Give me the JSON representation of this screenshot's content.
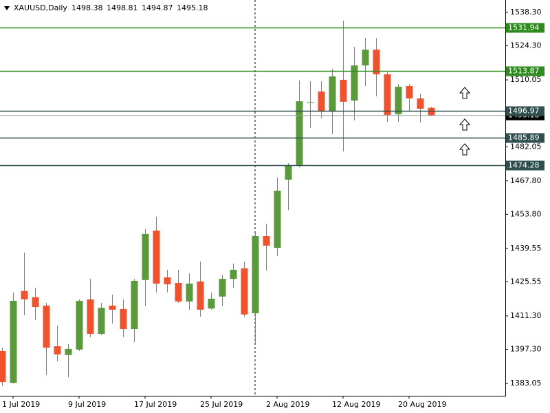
{
  "chart_data": {
    "type": "candlestick",
    "title": "XAUUSD,Daily",
    "categories": [
      null,
      "1 Jul 2019",
      null,
      null,
      null,
      null,
      null,
      "9 Jul 2019",
      null,
      null,
      null,
      null,
      null,
      "17 Jul 2019",
      null,
      null,
      null,
      null,
      null,
      "25 Jul 2019",
      null,
      null,
      null,
      null,
      null,
      "2 Aug 2019",
      null,
      null,
      null,
      null,
      null,
      "12 Aug 2019",
      null,
      null,
      null,
      null,
      null,
      "20 Aug 2019",
      null,
      null
    ],
    "open": [
      1396.6,
      1383.3,
      1421.7,
      1419.1,
      1415.6,
      1398.6,
      1394.9,
      1397.2,
      1418.2,
      1403.8,
      1415.6,
      1414.2,
      1405.8,
      1426.3,
      1447.0,
      1427.4,
      1425.1,
      1417.3,
      1425.7,
      1414.4,
      1419.4,
      1426.8,
      1431.2,
      1412.4,
      1444.7,
      1439.8,
      1468.3,
      1474.4,
      1500.5,
      1505.2,
      1496.8,
      1510.1,
      1501.4,
      1516.1,
      1522.7,
      1512.4,
      1495.7,
      1507.5,
      1502.3,
      1498.38
    ],
    "high": [
      1398.0,
      1421.1,
      1437.8,
      1423.1,
      1416.8,
      1407.3,
      1399.5,
      1418.2,
      1426.8,
      1416.8,
      1420.2,
      1418.2,
      1426.8,
      1447.6,
      1452.8,
      1430.6,
      1430.6,
      1429.1,
      1434.0,
      1421.1,
      1428.3,
      1433.2,
      1434.0,
      1446.1,
      1449.9,
      1469.2,
      1475.2,
      1509.8,
      1509.5,
      1509.5,
      1514.7,
      1534.8,
      1523.9,
      1527.6,
      1527.6,
      1513.2,
      1508.3,
      1508.3,
      1504.3,
      1498.81
    ],
    "low": [
      1382.0,
      1383.0,
      1411.6,
      1409.6,
      1386.5,
      1392.3,
      1385.6,
      1396.6,
      1402.4,
      1403.2,
      1408.1,
      1402.4,
      1400.3,
      1415.3,
      1421.1,
      1421.1,
      1416.8,
      1413.9,
      1411.0,
      1413.9,
      1415.3,
      1423.1,
      1411.0,
      1400.0,
      1430.3,
      1436.3,
      1455.6,
      1473.5,
      1489.9,
      1494.0,
      1487.3,
      1480.1,
      1493.1,
      1507.5,
      1503.2,
      1492.5,
      1492.5,
      1496.8,
      1492.2,
      1494.87
    ],
    "close": [
      1383.6,
      1417.6,
      1418.2,
      1415.0,
      1398.0,
      1395.2,
      1397.5,
      1417.6,
      1403.8,
      1414.7,
      1413.9,
      1405.8,
      1426.0,
      1445.6,
      1424.8,
      1424.5,
      1417.3,
      1424.8,
      1413.9,
      1418.5,
      1426.8,
      1430.6,
      1411.9,
      1444.7,
      1440.7,
      1463.7,
      1474.4,
      1501.1,
      1500.8,
      1496.8,
      1511.5,
      1500.9,
      1516.1,
      1522.7,
      1512.4,
      1495.4,
      1507.2,
      1502.3,
      1498.0,
      1495.18
    ],
    "up_color": "#5b9a3a",
    "down_color": "#f0522d",
    "ylim": [
      1377.87,
      1543.48
    ],
    "yticks": [
      {
        "value": 1538.3,
        "label": "1538.30"
      },
      {
        "value": 1524.3,
        "label": "1524.30"
      },
      {
        "value": 1510.05,
        "label": "1510.05"
      },
      {
        "value": 1482.05,
        "label": "1482.05"
      },
      {
        "value": 1467.8,
        "label": "1467.80"
      },
      {
        "value": 1453.8,
        "label": "1453.80"
      },
      {
        "value": 1439.55,
        "label": "1439.55"
      },
      {
        "value": 1425.55,
        "label": "1425.55"
      },
      {
        "value": 1411.3,
        "label": "1411.30"
      },
      {
        "value": 1397.3,
        "label": "1397.30"
      },
      {
        "value": 1383.05,
        "label": "1383.05"
      }
    ],
    "levels": [
      {
        "value": 1531.94,
        "color": "#2e8b1e"
      },
      {
        "value": 1513.87,
        "color": "#2e8b1e"
      },
      {
        "value": 1496.97,
        "color": "#2f4f4f"
      },
      {
        "value": 1485.89,
        "color": "#2f4f4f"
      },
      {
        "value": 1474.28,
        "color": "#2f4f4f"
      }
    ]
  }
}
